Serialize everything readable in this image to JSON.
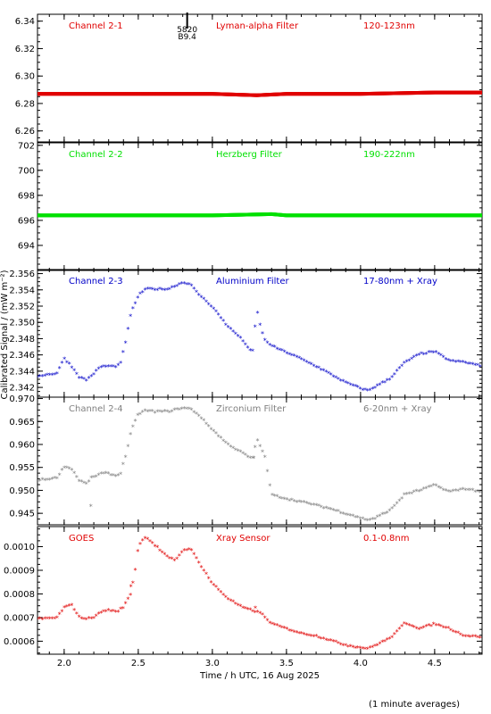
{
  "chart_data": {
    "type": "scatter",
    "xlabel": "Time / h UTC, 16 Aug 2025",
    "ylabel": "Calibrated Signal / (mW m⁻²)",
    "footnote": "(1 minute averages)",
    "xlim": [
      1.82,
      4.82
    ],
    "xticks": [
      "2.0",
      "2.5",
      "3.0",
      "3.5",
      "4.0",
      "4.5"
    ],
    "xtick_values": [
      2.0,
      2.5,
      3.0,
      3.5,
      4.0,
      4.5
    ],
    "panels": [
      {
        "channel": "Channel 2-1",
        "filter": "Lyman-alpha Filter",
        "band": "120-123nm",
        "color": "#e00000",
        "ylim": [
          6.252,
          6.345
        ],
        "yticks": [
          "6.34",
          "6.32",
          "6.30",
          "6.28",
          "6.26"
        ],
        "ytick_values": [
          6.34,
          6.32,
          6.3,
          6.28,
          6.26
        ],
        "annotation": {
          "x": 2.83,
          "lines": [
            "5820",
            "B9.4"
          ]
        },
        "series": [
          {
            "x": [
              1.82,
              2.5,
              3.0,
              3.3,
              3.5,
              4.0,
              4.5,
              4.82
            ],
            "y": [
              6.287,
              6.287,
              6.287,
              6.286,
              6.287,
              6.287,
              6.288,
              6.288
            ]
          }
        ]
      },
      {
        "channel": "Channel 2-2",
        "filter": "Herzberg Filter",
        "band": "190-222nm",
        "color": "#00e000",
        "ylim": [
          692.0,
          702.2
        ],
        "yticks": [
          "702",
          "700",
          "698",
          "696",
          "694"
        ],
        "ytick_values": [
          702,
          700,
          698,
          696,
          694
        ],
        "series": [
          {
            "x": [
              1.82,
              2.5,
              3.0,
              3.4,
              3.5,
              4.0,
              4.5,
              4.82
            ],
            "y": [
              696.4,
              696.4,
              696.4,
              696.5,
              696.4,
              696.4,
              696.4,
              696.4
            ]
          }
        ]
      },
      {
        "channel": "Channel 2-3",
        "filter": "Aluminium Filter",
        "band": "17-80nm + Xray",
        "color": "#0000c8",
        "ylim": [
          2.3408,
          2.3565
        ],
        "yticks": [
          "2.356",
          "2.354",
          "2.352",
          "2.350",
          "2.348",
          "2.346",
          "2.344",
          "2.342"
        ],
        "ytick_values": [
          2.356,
          2.354,
          2.352,
          2.35,
          2.348,
          2.346,
          2.344,
          2.342
        ],
        "series": [
          {
            "x": [
              1.82,
              1.95,
              2.0,
              2.05,
              2.1,
              2.15,
              2.18,
              2.25,
              2.3,
              2.35,
              2.38,
              2.42,
              2.45,
              2.5,
              2.55,
              2.6,
              2.7,
              2.8,
              2.85,
              2.9,
              3.0,
              3.1,
              3.2,
              3.25,
              3.27,
              3.3,
              3.32,
              3.35,
              3.4,
              3.5,
              3.6,
              3.7,
              3.8,
              3.9,
              4.0,
              4.05,
              4.1,
              4.2,
              4.3,
              4.4,
              4.5,
              4.6,
              4.7,
              4.82
            ],
            "y": [
              2.3433,
              2.3436,
              2.3455,
              2.3445,
              2.3432,
              2.3428,
              2.3433,
              2.3445,
              2.3445,
              2.3445,
              2.3448,
              2.348,
              2.351,
              2.3532,
              2.354,
              2.354,
              2.354,
              2.3548,
              2.3546,
              2.3535,
              2.3518,
              2.3495,
              2.3478,
              2.3466,
              2.346,
              2.3515,
              2.3498,
              2.3478,
              2.347,
              2.3462,
              2.3454,
              2.3445,
              2.3435,
              2.3425,
              2.3418,
              2.3415,
              2.342,
              2.343,
              2.345,
              2.346,
              2.3463,
              2.3452,
              2.345,
              2.3445
            ]
          }
        ]
      },
      {
        "channel": "Channel 2-4",
        "filter": "Zirconium Filter",
        "band": "6-20nm + Xray",
        "color": "#808080",
        "ylim": [
          0.9425,
          0.9703
        ],
        "yticks": [
          "0.970",
          "0.965",
          "0.960",
          "0.955",
          "0.950",
          "0.945"
        ],
        "ytick_values": [
          0.97,
          0.965,
          0.96,
          0.955,
          0.95,
          0.945
        ],
        "series": [
          {
            "x": [
              1.82,
              1.95,
              2.0,
              2.05,
              2.1,
              2.15,
              2.18,
              2.25,
              2.3,
              2.35,
              2.38,
              2.42,
              2.45,
              2.5,
              2.55,
              2.6,
              2.7,
              2.8,
              2.85,
              2.9,
              3.0,
              3.1,
              3.2,
              3.25,
              3.27,
              3.3,
              3.32,
              3.35,
              3.4,
              3.5,
              3.6,
              3.7,
              3.8,
              3.9,
              4.0,
              4.05,
              4.1,
              4.2,
              4.3,
              4.4,
              4.5,
              4.6,
              4.7,
              4.82
            ],
            "y": [
              0.952,
              0.9525,
              0.955,
              0.9545,
              0.952,
              0.9512,
              0.9525,
              0.9535,
              0.9535,
              0.953,
              0.9535,
              0.958,
              0.9625,
              0.9665,
              0.9672,
              0.967,
              0.967,
              0.9678,
              0.9676,
              0.9665,
              0.963,
              0.96,
              0.958,
              0.957,
              0.9565,
              0.9612,
              0.9595,
              0.9578,
              0.9488,
              0.948,
              0.9473,
              0.9466,
              0.9458,
              0.9448,
              0.9438,
              0.9434,
              0.9438,
              0.9455,
              0.949,
              0.9498,
              0.951,
              0.9495,
              0.9502,
              0.9495
            ]
          }
        ],
        "outliers": {
          "x": [
            2.18,
            3.28
          ],
          "y": [
            0.9465,
            0.957
          ]
        }
      },
      {
        "channel": "GOES",
        "filter": "Xray Sensor",
        "band": "0.1-0.8nm",
        "color": "#e00000",
        "ylim": [
          0.000545,
          0.001085
        ],
        "yticks": [
          "0.0010",
          "0.0009",
          "0.0008",
          "0.0007",
          "0.0006"
        ],
        "ytick_values": [
          0.001,
          0.0009,
          0.0008,
          0.0007,
          0.0006
        ],
        "series": [
          {
            "x": [
              1.82,
              1.95,
              2.0,
              2.05,
              2.1,
              2.15,
              2.2,
              2.25,
              2.3,
              2.35,
              2.4,
              2.45,
              2.48,
              2.5,
              2.55,
              2.6,
              2.7,
              2.75,
              2.8,
              2.85,
              2.9,
              3.0,
              3.1,
              3.2,
              3.3,
              3.32,
              3.35,
              3.4,
              3.5,
              3.6,
              3.7,
              3.8,
              3.9,
              4.0,
              4.05,
              4.1,
              4.2,
              4.25,
              4.3,
              4.4,
              4.5,
              4.6,
              4.7,
              4.82
            ],
            "y": [
              0.00069,
              0.000695,
              0.00074,
              0.00075,
              0.0007,
              0.00069,
              0.0007,
              0.00072,
              0.00073,
              0.00072,
              0.00074,
              0.0008,
              0.0009,
              0.001,
              0.00104,
              0.00101,
              0.00095,
              0.00094,
              0.00098,
              0.00099,
              0.00094,
              0.00084,
              0.00078,
              0.00074,
              0.00072,
              0.00072,
              0.0007,
              0.00067,
              0.00065,
              0.00063,
              0.00062,
              0.0006,
              0.00058,
              0.00057,
              0.000565,
              0.00058,
              0.00061,
              0.00064,
              0.000675,
              0.00065,
              0.00067,
              0.00065,
              0.00062,
              0.000615
            ]
          }
        ],
        "outliers": {
          "x": [
            2.45,
            3.29
          ],
          "y": [
            0.00083,
            0.00074
          ]
        }
      }
    ]
  }
}
